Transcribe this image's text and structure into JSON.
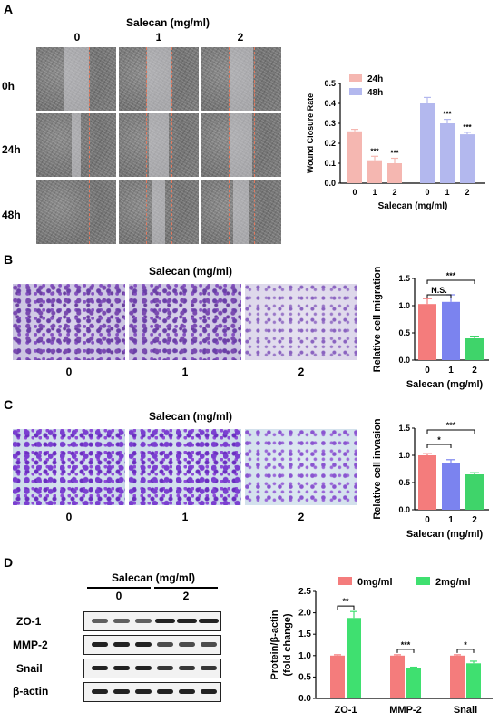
{
  "panels": {
    "A": "A",
    "B": "B",
    "C": "C",
    "D": "D"
  },
  "panelA": {
    "header": "Salecan (mg/ml)",
    "columns": [
      "0",
      "1",
      "2"
    ],
    "rows": [
      "0h",
      "24h",
      "48h"
    ]
  },
  "panelB": {
    "header": "Salecan (mg/ml)",
    "columns": [
      "0",
      "1",
      "2"
    ]
  },
  "panelC": {
    "header": "Salecan (mg/ml)",
    "columns": [
      "0",
      "1",
      "2"
    ]
  },
  "panelD": {
    "header": "Salecan (mg/ml)",
    "groups": [
      "0",
      "2"
    ],
    "proteins": [
      "ZO-1",
      "MMP-2",
      "Snail",
      "β-actin"
    ]
  },
  "chart_data": [
    {
      "id": "A",
      "type": "bar",
      "ylabel": "Wound Closure Rate",
      "xlabel": "Salecan (mg/ml)",
      "ylim": [
        0,
        0.5
      ],
      "yticks": [
        "0.0",
        "0.1",
        "0.2",
        "0.3",
        "0.4",
        "0.5"
      ],
      "legend_position": "top-left",
      "series": [
        {
          "name": "24h",
          "color": "#f5b7b1",
          "categories": [
            "0",
            "1",
            "2"
          ],
          "values": [
            0.26,
            0.115,
            0.1
          ],
          "errors": [
            0.01,
            0.02,
            0.025
          ],
          "sig": [
            "",
            "***",
            "***"
          ]
        },
        {
          "name": "48h",
          "color": "#b3b8ee",
          "categories": [
            "0",
            "1",
            "2"
          ],
          "values": [
            0.4,
            0.3,
            0.245
          ],
          "errors": [
            0.03,
            0.02,
            0.01
          ],
          "sig": [
            "",
            "***",
            "***"
          ]
        }
      ]
    },
    {
      "id": "B",
      "type": "bar",
      "ylabel": "Relative cell migration",
      "xlabel": "Salecan (mg/ml)",
      "ylim": [
        0,
        1.5
      ],
      "yticks": [
        "0.0",
        "0.5",
        "1.0",
        "1.5"
      ],
      "categories": [
        "0",
        "1",
        "2"
      ],
      "values": [
        1.03,
        1.07,
        0.4
      ],
      "errors": [
        0.1,
        0.13,
        0.04
      ],
      "colors": [
        "#f47c7c",
        "#7b83ef",
        "#3fd46a"
      ],
      "brackets": [
        {
          "from": 0,
          "to": 1,
          "label": "N.S."
        },
        {
          "from": 0,
          "to": 2,
          "label": "***"
        }
      ]
    },
    {
      "id": "C",
      "type": "bar",
      "ylabel": "Relative cell invasion",
      "xlabel": "Salecan (mg/ml)",
      "ylim": [
        0,
        1.5
      ],
      "yticks": [
        "0.0",
        "0.5",
        "1.0",
        "1.5"
      ],
      "categories": [
        "0",
        "1",
        "2"
      ],
      "values": [
        1.0,
        0.86,
        0.65
      ],
      "errors": [
        0.03,
        0.06,
        0.03
      ],
      "colors": [
        "#f47c7c",
        "#7b83ef",
        "#3fd46a"
      ],
      "brackets": [
        {
          "from": 0,
          "to": 1,
          "label": "*"
        },
        {
          "from": 0,
          "to": 2,
          "label": "***"
        }
      ]
    },
    {
      "id": "D",
      "type": "bar",
      "ylabel": "Protein/β-actin (fold change)",
      "ylim": [
        0,
        2.5
      ],
      "yticks": [
        "0.0",
        "0.5",
        "1.0",
        "1.5",
        "2.0",
        "2.5"
      ],
      "categories": [
        "ZO-1",
        "MMP-2",
        "Snail"
      ],
      "legend_position": "top",
      "series": [
        {
          "name": "0mg/ml",
          "color": "#f47c7c",
          "values": [
            1.0,
            1.0,
            1.0
          ],
          "errors": [
            0.02,
            0.02,
            0.02
          ]
        },
        {
          "name": "2mg/ml",
          "color": "#3fe070",
          "values": [
            1.88,
            0.7,
            0.82
          ],
          "errors": [
            0.15,
            0.03,
            0.05
          ]
        }
      ],
      "sig": [
        "**",
        "***",
        "*"
      ]
    }
  ]
}
